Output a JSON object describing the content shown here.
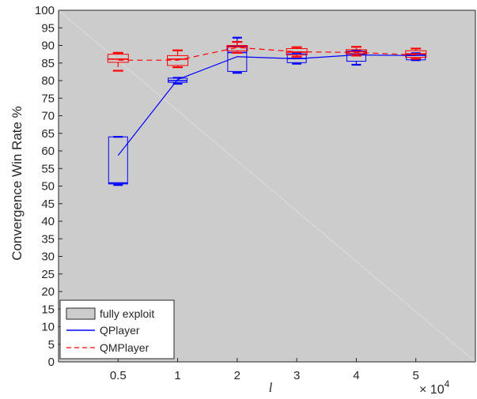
{
  "chart_data": {
    "type": "box",
    "ylabel": "Convergence Win Rate %",
    "xlabel": "l",
    "x_multiplier": "× 10",
    "x_multiplier_exp": "4",
    "categories": [
      "0.5",
      "1",
      "2",
      "3",
      "4",
      "5"
    ],
    "ylim": [
      0,
      100
    ],
    "yticks": [
      0,
      5,
      10,
      15,
      20,
      25,
      30,
      35,
      40,
      45,
      50,
      55,
      60,
      65,
      70,
      75,
      80,
      85,
      90,
      95,
      100
    ],
    "region": {
      "name": "fully exploit",
      "from": [
        0,
        100
      ],
      "to": [
        6.5,
        0
      ],
      "color": "#cccccc"
    },
    "series": [
      {
        "name": "QPlayer",
        "color": "#0000ff",
        "line_style": "solid",
        "means": [
          58.7,
          80.3,
          86.8,
          86.2,
          87.3,
          87.1
        ],
        "boxes": [
          {
            "whisker_low": 50.3,
            "q1": 50.6,
            "median": 50.9,
            "q3": 64.0,
            "whisker_high": 64.0
          },
          {
            "whisker_low": 79.1,
            "q1": 79.5,
            "median": 80.0,
            "q3": 80.7,
            "whisker_high": 80.8
          },
          {
            "whisker_low": 82.2,
            "q1": 82.6,
            "median": 88.0,
            "q3": 89.8,
            "whisker_high": 92.2
          },
          {
            "whisker_low": 84.8,
            "q1": 85.1,
            "median": 86.3,
            "q3": 87.6,
            "whisker_high": 87.8
          },
          {
            "whisker_low": 84.5,
            "q1": 85.5,
            "median": 87.6,
            "q3": 88.4,
            "whisker_high": 88.5
          },
          {
            "whisker_low": 85.8,
            "q1": 85.9,
            "median": 87.2,
            "q3": 87.6,
            "whisker_high": 87.8
          }
        ]
      },
      {
        "name": "QMPlayer",
        "color": "#ff0000",
        "line_style": "dashed",
        "means": [
          85.8,
          85.8,
          89.4,
          88.2,
          88.0,
          87.3
        ],
        "boxes": [
          {
            "whisker_low": 82.8,
            "q1": 85.2,
            "median": 86.1,
            "q3": 87.5,
            "whisker_high": 87.9
          },
          {
            "whisker_low": 83.8,
            "q1": 84.3,
            "median": 86.1,
            "q3": 87.1,
            "whisker_high": 88.6
          },
          {
            "whisker_low": 87.9,
            "q1": 88.5,
            "median": 89.6,
            "q3": 90.0,
            "whisker_high": 91.0
          },
          {
            "whisker_low": 86.8,
            "q1": 87.3,
            "median": 88.1,
            "q3": 89.1,
            "whisker_high": 89.5
          },
          {
            "whisker_low": 87.1,
            "q1": 87.6,
            "median": 88.2,
            "q3": 88.8,
            "whisker_high": 89.6
          },
          {
            "whisker_low": 86.2,
            "q1": 86.6,
            "median": 87.6,
            "q3": 88.5,
            "whisker_high": 89.1
          }
        ]
      }
    ],
    "legend": {
      "position": "bottom-left",
      "entries": [
        "fully exploit",
        "QPlayer",
        "QMPlayer"
      ]
    },
    "grid": false
  }
}
